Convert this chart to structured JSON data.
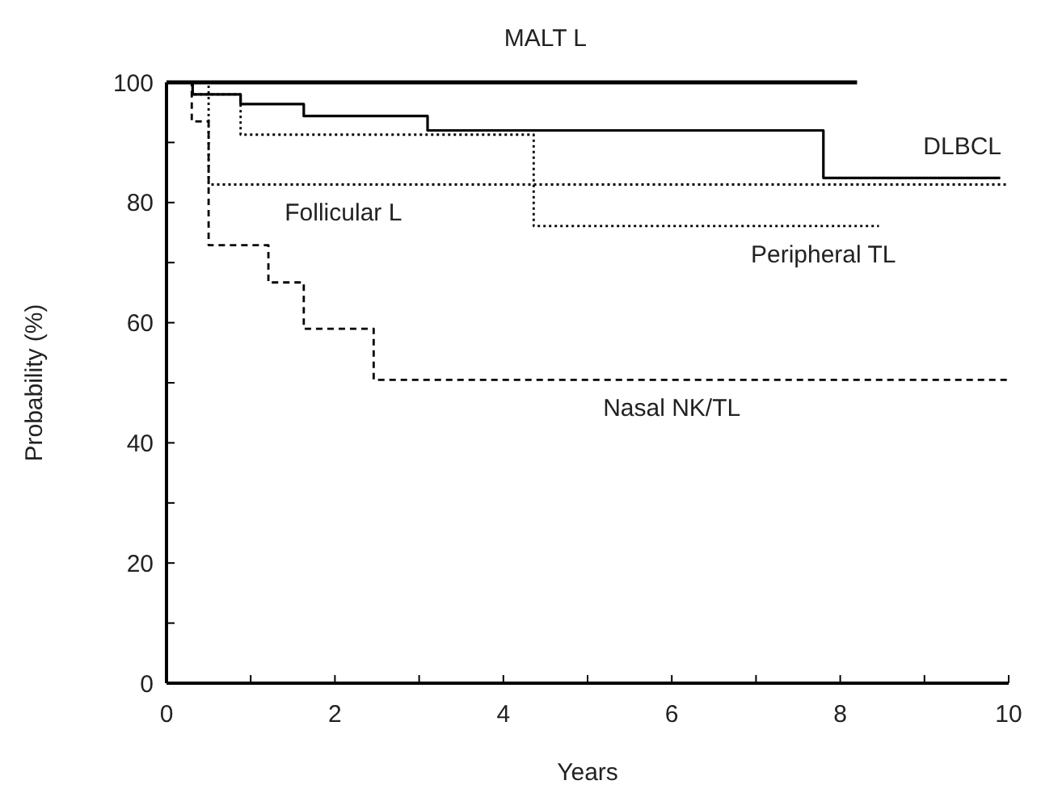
{
  "chart_data": {
    "type": "step",
    "xlabel": "Years",
    "ylabel": "Probability (%)",
    "xlim": [
      0,
      10
    ],
    "ylim": [
      0,
      100
    ],
    "xticks": [
      0,
      {
        "value": 1,
        "label": null
      },
      2,
      {
        "value": 3,
        "label": null
      },
      4,
      {
        "value": 5,
        "label": null
      },
      6,
      {
        "value": 7,
        "label": null
      },
      8,
      {
        "value": 9,
        "label": null
      },
      10
    ],
    "yticks": [
      0,
      {
        "value": 10,
        "label": null
      },
      20,
      {
        "value": 30,
        "label": null
      },
      40,
      {
        "value": 50,
        "label": null
      },
      60,
      {
        "value": 70,
        "label": null
      },
      80,
      {
        "value": 90,
        "label": null
      },
      100
    ],
    "grid": false,
    "marker": "none",
    "series": [
      {
        "name": "MALT L",
        "color": "#000000",
        "line_style": "solid",
        "x": [
          0,
          8.2
        ],
        "values": [
          100,
          100
        ]
      },
      {
        "name": "DLBCL",
        "color": "#000000",
        "line_style": "solid",
        "x": [
          0,
          0.31,
          0.88,
          1.63,
          3.1,
          7.8,
          9.9
        ],
        "values": [
          100,
          98,
          96.4,
          94.4,
          92,
          84.1,
          84.1
        ]
      },
      {
        "name": "Follicular L",
        "color": "#000000",
        "line_style": "dotted",
        "x": [
          0,
          0.5,
          10
        ],
        "values": [
          100,
          83,
          83
        ]
      },
      {
        "name": "Peripheral TL",
        "color": "#000000",
        "line_style": "dotted",
        "x": [
          0,
          0.31,
          0.88,
          4.36,
          8.46
        ],
        "values": [
          100,
          98,
          91.3,
          76.1,
          76.1
        ]
      },
      {
        "name": "Nasal NK/TL",
        "color": "#000000",
        "line_style": "dashed",
        "x": [
          0,
          0.3,
          0.5,
          1.21,
          1.63,
          2.46,
          10
        ],
        "values": [
          100,
          93.5,
          72.9,
          66.7,
          59,
          50.5,
          50.5
        ]
      }
    ]
  }
}
